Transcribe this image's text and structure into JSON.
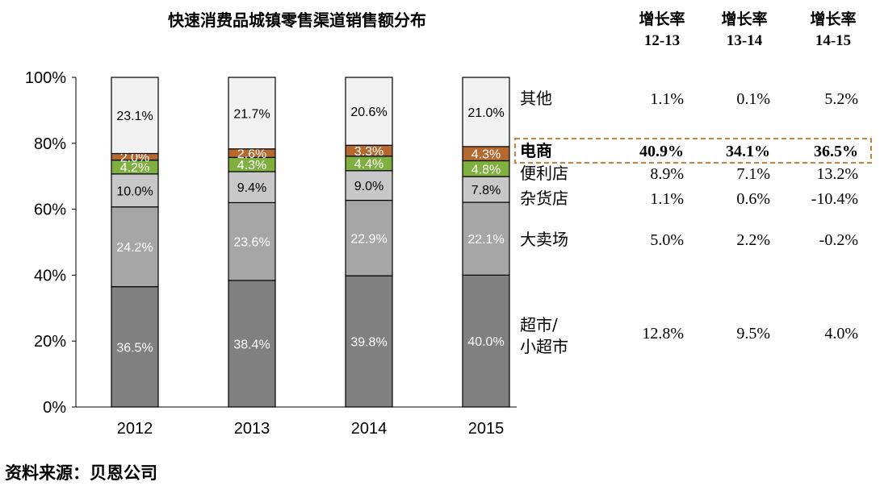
{
  "chart_data": {
    "type": "bar",
    "stacked": true,
    "title": "快速消费品城镇零售渠道销售额分布",
    "categories": [
      "2012",
      "2013",
      "2014",
      "2015"
    ],
    "ylim": [
      0,
      100
    ],
    "yticks": [
      "0%",
      "20%",
      "40%",
      "60%",
      "80%",
      "100%"
    ],
    "series": [
      {
        "name": "超市/小超市",
        "values": [
          36.5,
          38.4,
          39.8,
          40.0
        ],
        "labels": [
          "36.5%",
          "38.4%",
          "39.8%",
          "40.0%"
        ],
        "color": "#808080",
        "label_color": "#ffffff"
      },
      {
        "name": "大卖场",
        "values": [
          24.2,
          23.6,
          22.9,
          22.1
        ],
        "labels": [
          "24.2%",
          "23.6%",
          "22.9%",
          "22.1%"
        ],
        "color": "#a6a6a6",
        "label_color": "#ffffff"
      },
      {
        "name": "杂货店",
        "values": [
          10.0,
          9.4,
          9.0,
          7.8
        ],
        "labels": [
          "10.0%",
          "9.4%",
          "9.0%",
          "7.8%"
        ],
        "color": "#c8c8c8",
        "label_color": "#000000"
      },
      {
        "name": "便利店",
        "values": [
          4.2,
          4.3,
          4.4,
          4.8
        ],
        "labels": [
          "4.2%",
          "4.3%",
          "4.4%",
          "4.8%"
        ],
        "color": "#7fb03f",
        "label_color": "#ffffff"
      },
      {
        "name": "电商",
        "values": [
          2.0,
          2.6,
          3.3,
          4.3
        ],
        "labels": [
          "2.0%",
          "2.6%",
          "3.3%",
          "4.3%"
        ],
        "color": "#b5692f",
        "label_color": "#ffffff"
      },
      {
        "name": "其他",
        "values": [
          23.1,
          21.7,
          20.6,
          21.0
        ],
        "labels": [
          "23.1%",
          "21.7%",
          "20.6%",
          "21.0%"
        ],
        "color": "#f2f2f2",
        "label_color": "#000000"
      }
    ],
    "growth_table": {
      "headers": [
        {
          "line1": "增长率",
          "line2": "12-13"
        },
        {
          "line1": "增长率",
          "line2": "13-14"
        },
        {
          "line1": "增长率",
          "line2": "14-15"
        }
      ],
      "rows": [
        {
          "label_lines": [
            "其他"
          ],
          "values": [
            "1.1%",
            "0.1%",
            "5.2%"
          ],
          "highlight": false
        },
        {
          "label_lines": [
            "电商"
          ],
          "values": [
            "40.9%",
            "34.1%",
            "36.5%"
          ],
          "highlight": true
        },
        {
          "label_lines": [
            "便利店"
          ],
          "values": [
            "8.9%",
            "7.1%",
            "13.2%"
          ],
          "highlight": false
        },
        {
          "label_lines": [
            "杂货店"
          ],
          "values": [
            "1.1%",
            "0.6%",
            "-10.4%"
          ],
          "highlight": false
        },
        {
          "label_lines": [
            "大卖场"
          ],
          "values": [
            "5.0%",
            "2.2%",
            "-0.2%"
          ],
          "highlight": false
        },
        {
          "label_lines": [
            "超市/",
            "小超市"
          ],
          "values": [
            "12.8%",
            "9.5%",
            "4.0%"
          ],
          "highlight": false
        }
      ]
    },
    "highlight_color": "#c8823a"
  },
  "source": "资料来源：贝恩公司"
}
